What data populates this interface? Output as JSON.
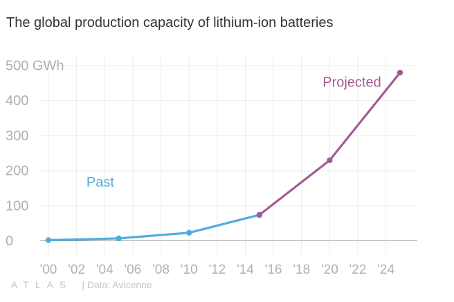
{
  "title": "The global production capacity of lithium-ion batteries",
  "footer": {
    "brand": "ATLAS",
    "credit": "| Data: Avicenne"
  },
  "colors": {
    "past": "#51acdc",
    "projected": "#a55a92",
    "grid": "#ececec",
    "baseline": "#999999",
    "tick_text": "#b0b0b0"
  },
  "chart_data": {
    "type": "line",
    "title": "The global production capacity of lithium-ion batteries",
    "xlabel": "",
    "ylabel": "",
    "xlim": [
      1998,
      2026.5
    ],
    "ylim": [
      -40,
      530
    ],
    "x_ticks": [
      2000,
      2002,
      2004,
      2006,
      2008,
      2010,
      2012,
      2014,
      2016,
      2018,
      2020,
      2022,
      2024
    ],
    "x_tick_labels": [
      "'00",
      "'02",
      "'04",
      "'06",
      "'08",
      "'10",
      "'12",
      "'14",
      "'16",
      "'18",
      "'20",
      "'22",
      "'24"
    ],
    "y_ticks": [
      0,
      100,
      200,
      300,
      400,
      500
    ],
    "y_tick_labels": [
      "0",
      "100",
      "200",
      "300",
      "400",
      "500 GWh"
    ],
    "grid": true,
    "series": [
      {
        "name": "Past",
        "x": [
          2000,
          2005,
          2010,
          2015
        ],
        "values": [
          2,
          7,
          23,
          74
        ]
      },
      {
        "name": "Projected",
        "x": [
          2015,
          2020,
          2025
        ],
        "values": [
          74,
          230,
          480
        ]
      }
    ]
  }
}
